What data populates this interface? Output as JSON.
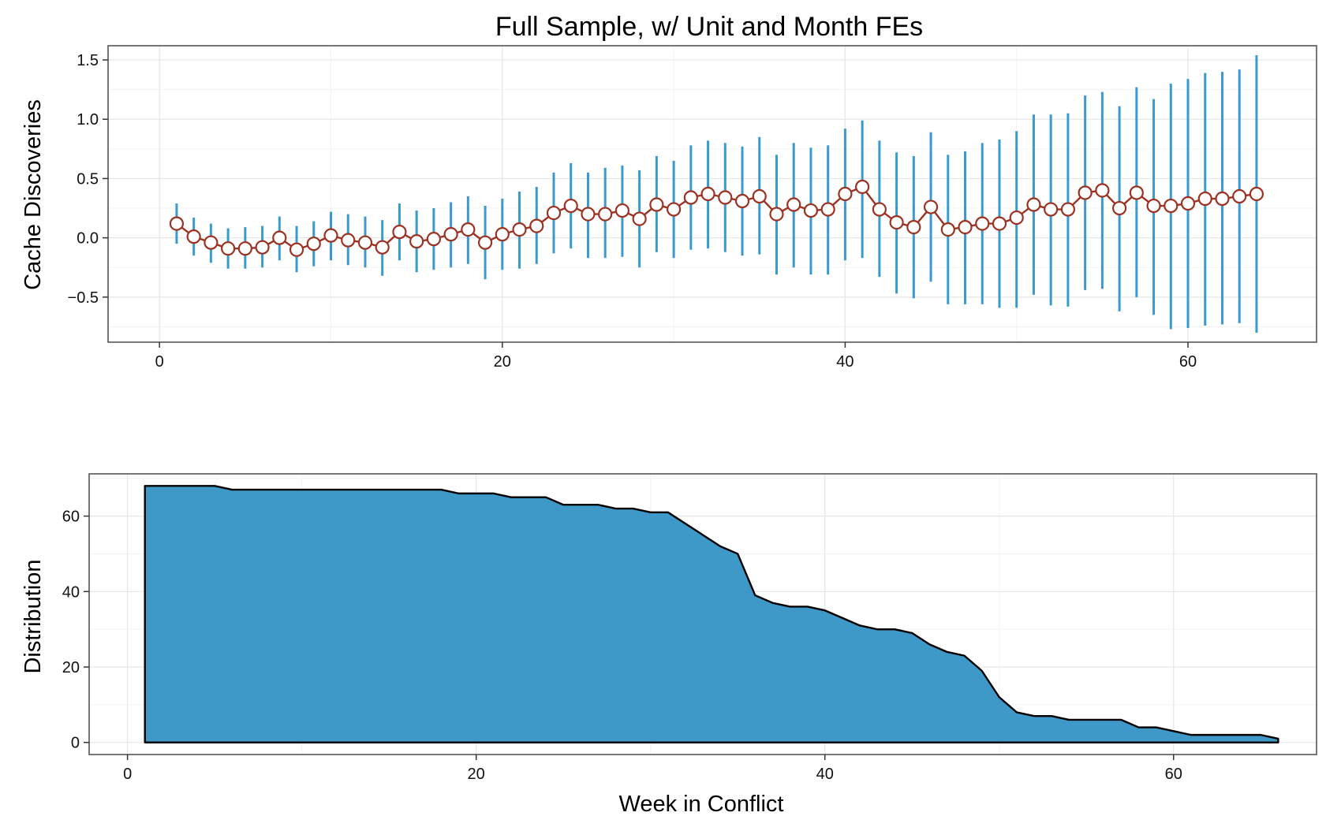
{
  "chart_data": [
    {
      "type": "line",
      "title": "Full Sample, w/ Unit and Month FEs",
      "ylabel": "Cache Discoveries",
      "xlabel": "",
      "xlim": [
        -3,
        67.5
      ],
      "ylim": [
        -0.88,
        1.62
      ],
      "xticks": [
        0,
        20,
        40,
        60
      ],
      "yticks": [
        -0.5,
        0.0,
        0.5,
        1.0,
        1.5
      ],
      "ytick_labels": [
        "−0.5",
        "0.0",
        "0.5",
        "1.0",
        "1.5"
      ],
      "grid": true,
      "colors": {
        "errorbar": "#3a9ad0",
        "line": "#9b3222",
        "marker_fill": "#ffffff"
      },
      "series": [
        {
          "x": [
            1,
            2,
            3,
            4,
            5,
            6,
            7,
            8,
            9,
            10,
            11,
            12,
            13,
            14,
            15,
            16,
            17,
            18,
            19,
            20,
            21,
            22,
            23,
            24,
            25,
            26,
            27,
            28,
            29,
            30,
            31,
            32,
            33,
            34,
            35,
            36,
            37,
            38,
            39,
            40,
            41,
            42,
            43,
            44,
            45,
            46,
            47,
            48,
            49,
            50,
            51,
            52,
            53,
            54,
            55,
            56,
            57,
            58,
            59,
            60,
            61,
            62,
            63,
            64
          ],
          "y": [
            0.12,
            0.01,
            -0.04,
            -0.09,
            -0.09,
            -0.08,
            0.0,
            -0.1,
            -0.05,
            0.02,
            -0.02,
            -0.04,
            -0.08,
            0.05,
            -0.03,
            -0.01,
            0.03,
            0.07,
            -0.04,
            0.03,
            0.07,
            0.1,
            0.21,
            0.27,
            0.2,
            0.2,
            0.23,
            0.16,
            0.28,
            0.24,
            0.34,
            0.37,
            0.34,
            0.31,
            0.35,
            0.2,
            0.28,
            0.23,
            0.24,
            0.37,
            0.43,
            0.24,
            0.13,
            0.09,
            0.26,
            0.07,
            0.09,
            0.12,
            0.12,
            0.17,
            0.28,
            0.24,
            0.24,
            0.38,
            0.4,
            0.25,
            0.38,
            0.27,
            0.27,
            0.29,
            0.33,
            0.33,
            0.35,
            0.37
          ],
          "lower": [
            -0.05,
            -0.15,
            -0.21,
            -0.26,
            -0.26,
            -0.25,
            -0.19,
            -0.29,
            -0.24,
            -0.19,
            -0.23,
            -0.25,
            -0.32,
            -0.19,
            -0.29,
            -0.27,
            -0.25,
            -0.22,
            -0.35,
            -0.27,
            -0.26,
            -0.22,
            -0.13,
            -0.09,
            -0.17,
            -0.17,
            -0.16,
            -0.25,
            -0.12,
            -0.17,
            -0.1,
            -0.09,
            -0.12,
            -0.15,
            -0.14,
            -0.31,
            -0.25,
            -0.31,
            -0.31,
            -0.19,
            -0.17,
            -0.33,
            -0.47,
            -0.51,
            -0.37,
            -0.56,
            -0.56,
            -0.56,
            -0.59,
            -0.59,
            -0.48,
            -0.57,
            -0.58,
            -0.44,
            -0.43,
            -0.62,
            -0.5,
            -0.65,
            -0.77,
            -0.76,
            -0.74,
            -0.73,
            -0.72,
            -0.8
          ],
          "upper": [
            0.29,
            0.17,
            0.12,
            0.08,
            0.09,
            0.1,
            0.18,
            0.1,
            0.14,
            0.22,
            0.2,
            0.18,
            0.15,
            0.29,
            0.23,
            0.25,
            0.3,
            0.35,
            0.27,
            0.33,
            0.39,
            0.43,
            0.55,
            0.63,
            0.55,
            0.59,
            0.61,
            0.57,
            0.69,
            0.65,
            0.78,
            0.82,
            0.8,
            0.77,
            0.85,
            0.7,
            0.8,
            0.76,
            0.78,
            0.92,
            0.99,
            0.82,
            0.72,
            0.69,
            0.89,
            0.7,
            0.73,
            0.8,
            0.83,
            0.9,
            1.04,
            1.04,
            1.05,
            1.2,
            1.23,
            1.11,
            1.27,
            1.17,
            1.3,
            1.34,
            1.39,
            1.4,
            1.42,
            1.54
          ]
        }
      ]
    },
    {
      "type": "area",
      "title": "",
      "ylabel": "Distribution",
      "xlabel": "Week in Conflict",
      "xlim": [
        -2.2,
        68.2
      ],
      "ylim": [
        -3.2,
        71.2
      ],
      "xticks": [
        0,
        20,
        40,
        60
      ],
      "yticks": [
        0,
        20,
        40,
        60
      ],
      "ytick_labels": [
        "0",
        "20",
        "40",
        "60"
      ],
      "grid": true,
      "colors": {
        "fill": "#3f99c8",
        "outline": "#000000"
      },
      "series": [
        {
          "x": [
            1,
            2,
            3,
            4,
            5,
            6,
            7,
            8,
            9,
            10,
            11,
            12,
            13,
            14,
            15,
            16,
            17,
            18,
            19,
            20,
            21,
            22,
            23,
            24,
            25,
            26,
            27,
            28,
            29,
            30,
            31,
            32,
            33,
            34,
            35,
            36,
            37,
            38,
            39,
            40,
            41,
            42,
            43,
            44,
            45,
            46,
            47,
            48,
            49,
            50,
            51,
            52,
            53,
            54,
            55,
            56,
            57,
            58,
            59,
            60,
            61,
            62,
            63,
            64,
            65,
            66
          ],
          "y": [
            68,
            68,
            68,
            68,
            68,
            67,
            67,
            67,
            67,
            67,
            67,
            67,
            67,
            67,
            67,
            67,
            67,
            67,
            66,
            66,
            66,
            65,
            65,
            65,
            63,
            63,
            63,
            62,
            62,
            61,
            61,
            58,
            55,
            52,
            50,
            39,
            37,
            36,
            36,
            35,
            33,
            31,
            30,
            30,
            29,
            26,
            24,
            23,
            19,
            12,
            8,
            7,
            7,
            6,
            6,
            6,
            6,
            4,
            4,
            3,
            2,
            2,
            2,
            2,
            2,
            1
          ]
        }
      ]
    }
  ]
}
